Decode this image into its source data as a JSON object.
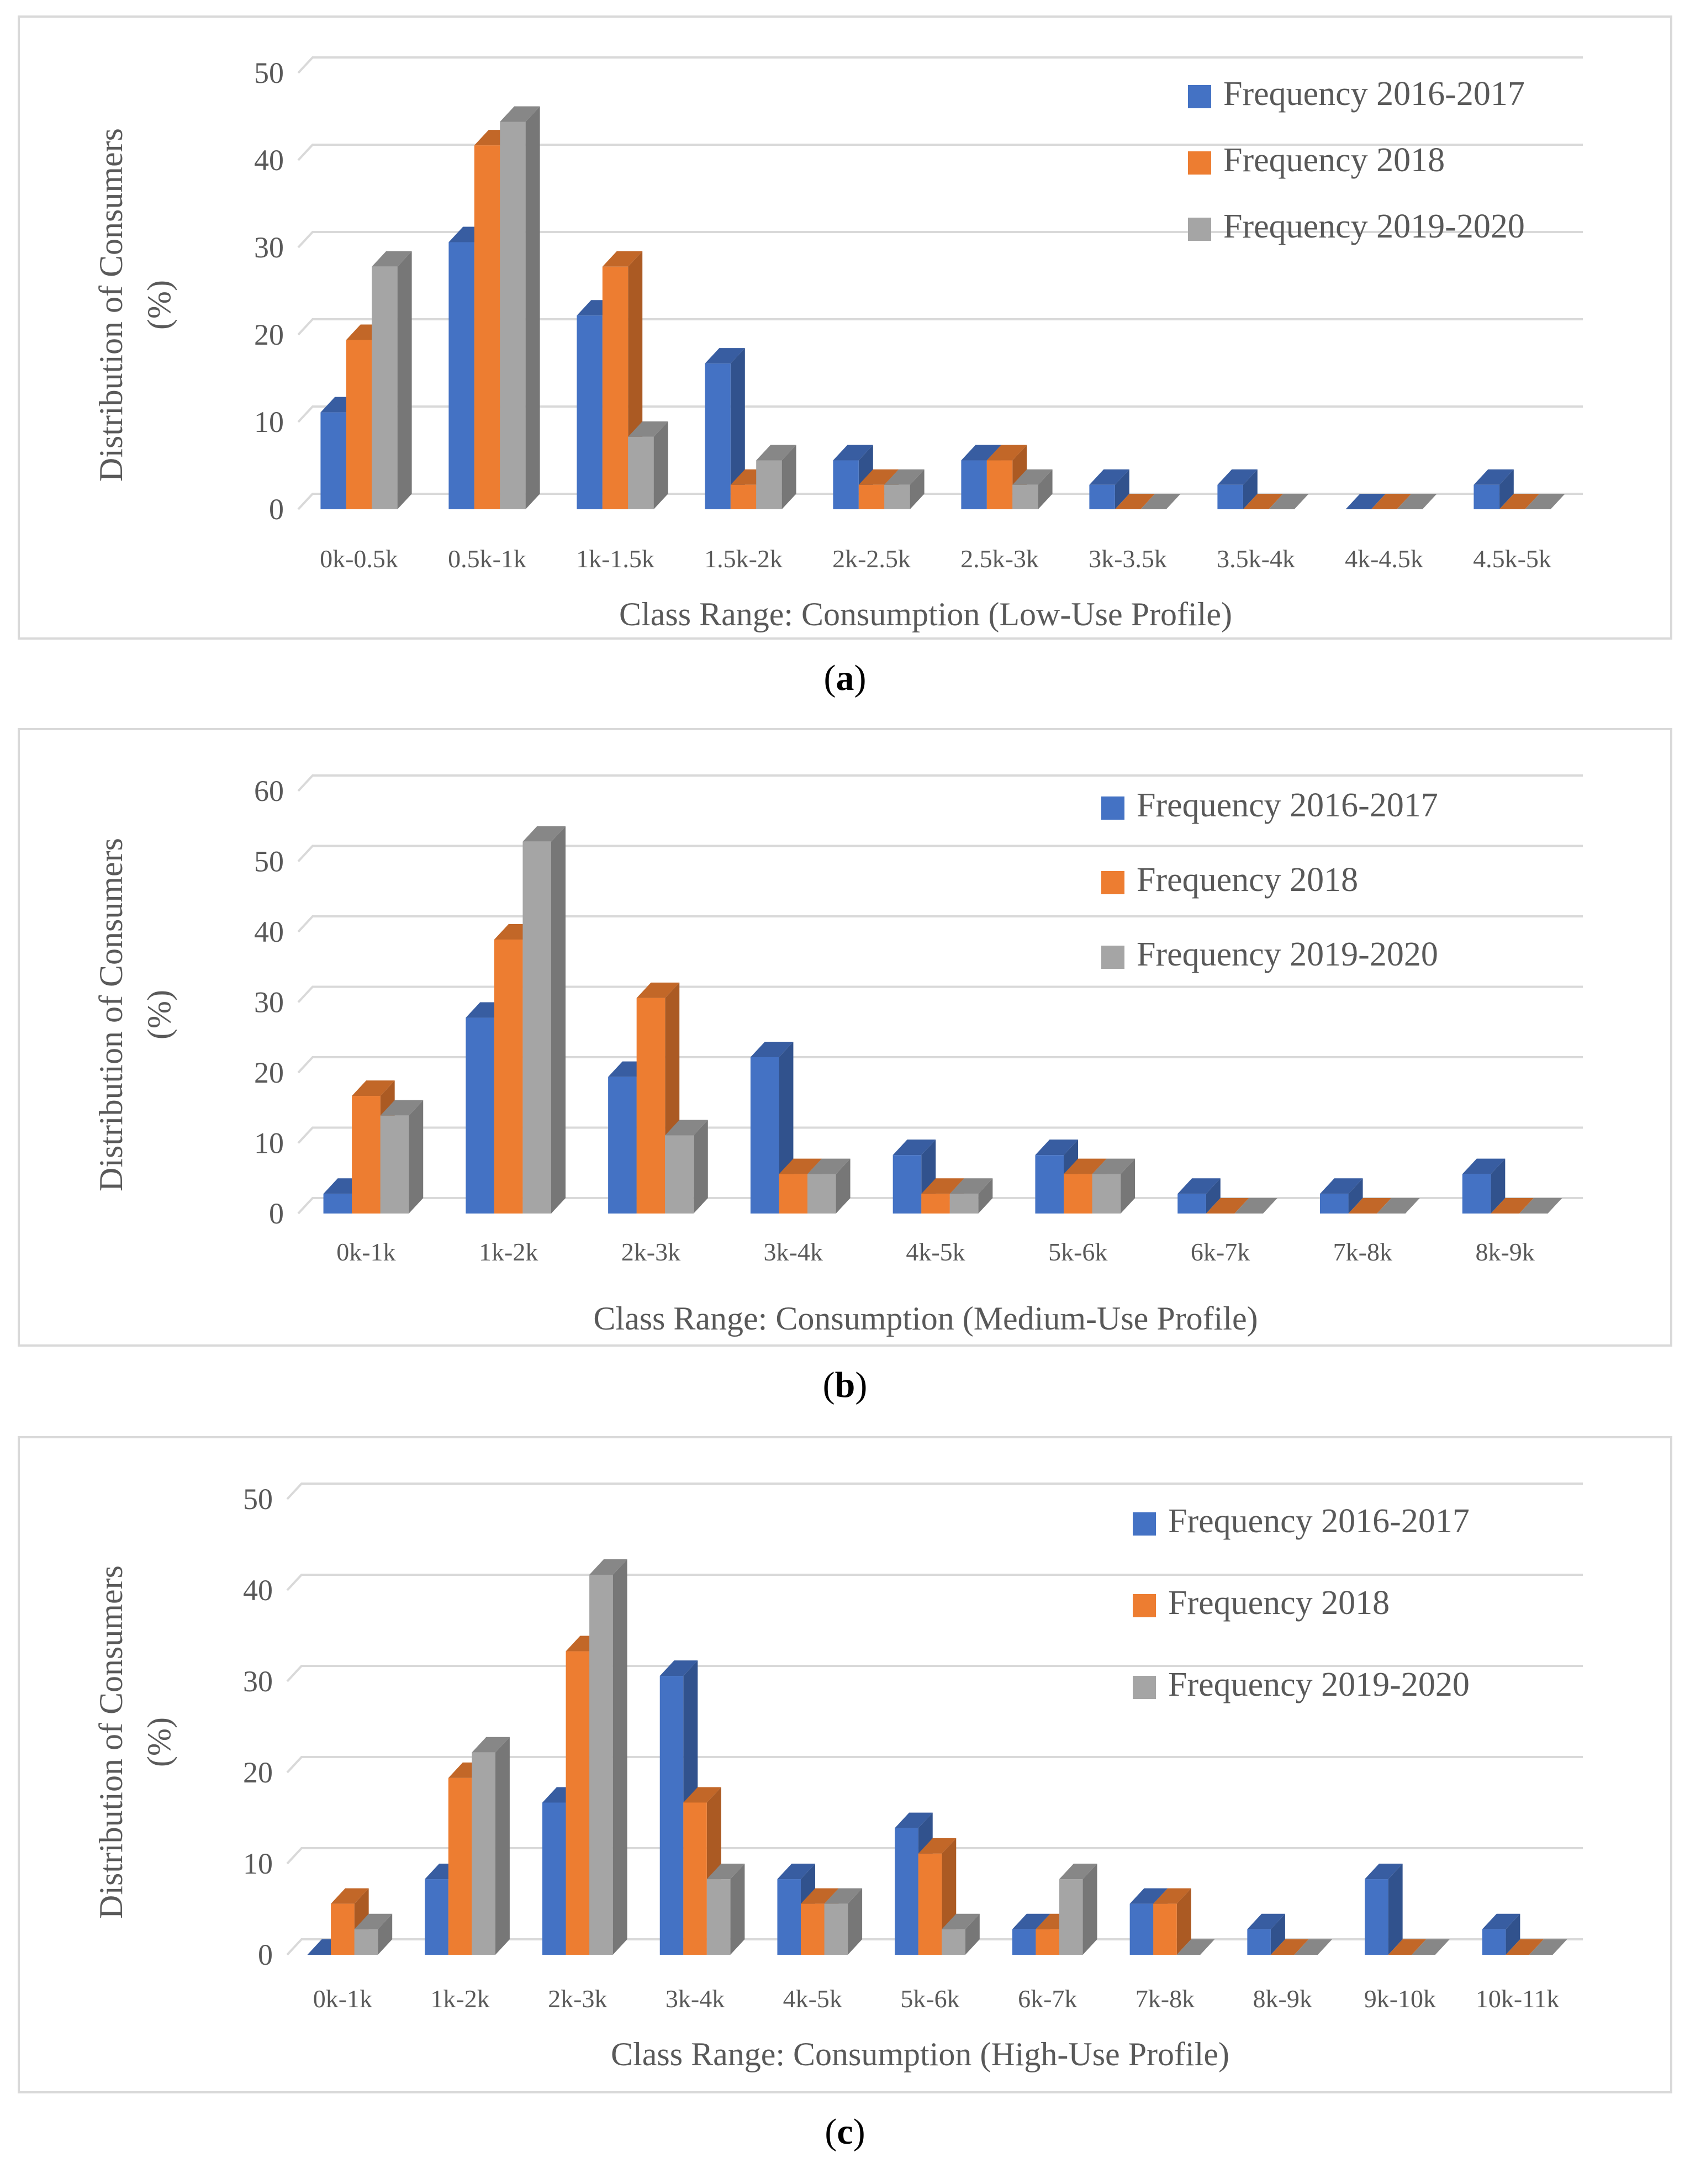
{
  "colors": {
    "series": [
      "#4472c4",
      "#ed7d31",
      "#a5a5a5"
    ],
    "grid": "#d9d9d9",
    "text": "#595959",
    "border": "#d9d9d9"
  },
  "chart_data": [
    {
      "panel": "a",
      "type": "bar",
      "ylabel": "Distribution of Consumers (%)",
      "ylabel_lines": [
        "Distribution of Consumers",
        "(%)"
      ],
      "xlabel": "Class Range: Consumption (Low-Use Profile)",
      "ylim": [
        0,
        50
      ],
      "yticks": [
        0,
        10,
        20,
        30,
        40,
        50
      ],
      "grid": true,
      "legend": "top-right",
      "categories": [
        "0k-0.5k",
        "0.5k-1k",
        "1k-1.5k",
        "1.5k-2k",
        "2k-2.5k",
        "2.5k-3k",
        "3k-3.5k",
        "3.5k-4k",
        "4k-4.5k",
        "4.5k-5k"
      ],
      "series": [
        {
          "name": "Frequency 2016-2017",
          "values": [
            11.1,
            30.6,
            22.2,
            16.7,
            5.6,
            5.6,
            2.8,
            2.8,
            0,
            2.8
          ]
        },
        {
          "name": "Frequency 2018",
          "values": [
            19.4,
            41.7,
            27.8,
            2.8,
            2.8,
            5.6,
            0,
            0,
            0,
            0
          ]
        },
        {
          "name": "Frequency 2019-2020",
          "values": [
            27.8,
            44.4,
            8.3,
            5.6,
            2.8,
            2.8,
            0,
            0,
            0,
            0
          ]
        }
      ]
    },
    {
      "panel": "b",
      "type": "bar",
      "ylabel": "Distribution of Consumers (%)",
      "ylabel_lines": [
        "Distribution of Consumers",
        "(%)"
      ],
      "xlabel": "Class Range: Consumption (Medium-Use Profile)",
      "ylim": [
        0,
        60
      ],
      "yticks": [
        0,
        10,
        20,
        30,
        40,
        50,
        60
      ],
      "grid": true,
      "legend": "top-right",
      "categories": [
        "0k-1k",
        "1k-2k",
        "2k-3k",
        "3k-4k",
        "4k-5k",
        "5k-6k",
        "6k-7k",
        "7k-8k",
        "8k-9k"
      ],
      "series": [
        {
          "name": "Frequency 2016-2017",
          "values": [
            2.8,
            27.8,
            19.4,
            22.2,
            8.3,
            8.3,
            2.8,
            2.8,
            5.6
          ]
        },
        {
          "name": "Frequency 2018",
          "values": [
            16.7,
            38.9,
            30.6,
            5.6,
            2.8,
            5.6,
            0,
            0,
            0
          ]
        },
        {
          "name": "Frequency 2019-2020",
          "values": [
            13.9,
            52.8,
            11.1,
            5.6,
            2.8,
            5.6,
            0,
            0,
            0
          ]
        }
      ]
    },
    {
      "panel": "c",
      "type": "bar",
      "ylabel": "Distribution of Consumers (%)",
      "ylabel_lines": [
        "Distribution of Consumers",
        "(%)"
      ],
      "xlabel": "Class Range: Consumption (High-Use Profile)",
      "ylim": [
        0,
        50
      ],
      "yticks": [
        0,
        10,
        20,
        30,
        40,
        50
      ],
      "grid": true,
      "legend": "top-right",
      "categories": [
        "0k-1k",
        "1k-2k",
        "2k-3k",
        "3k-4k",
        "4k-5k",
        "5k-6k",
        "6k-7k",
        "7k-8k",
        "8k-9k",
        "9k-10k",
        "10k-11k"
      ],
      "series": [
        {
          "name": "Frequency 2016-2017",
          "values": [
            0,
            8.3,
            16.7,
            30.6,
            8.3,
            13.9,
            2.8,
            5.6,
            2.8,
            8.3,
            2.8
          ]
        },
        {
          "name": "Frequency 2018",
          "values": [
            5.6,
            19.4,
            33.3,
            16.7,
            5.6,
            11.1,
            2.8,
            5.6,
            0,
            0,
            0
          ]
        },
        {
          "name": "Frequency 2019-2020",
          "values": [
            2.8,
            22.2,
            41.7,
            8.3,
            5.6,
            2.8,
            8.3,
            0,
            0,
            0,
            0
          ]
        }
      ]
    }
  ],
  "captions": [
    {
      "open": "(",
      "letter": "a",
      "close": ")"
    },
    {
      "open": "(",
      "letter": "b",
      "close": ")"
    },
    {
      "open": "(",
      "letter": "c",
      "close": ")"
    }
  ]
}
